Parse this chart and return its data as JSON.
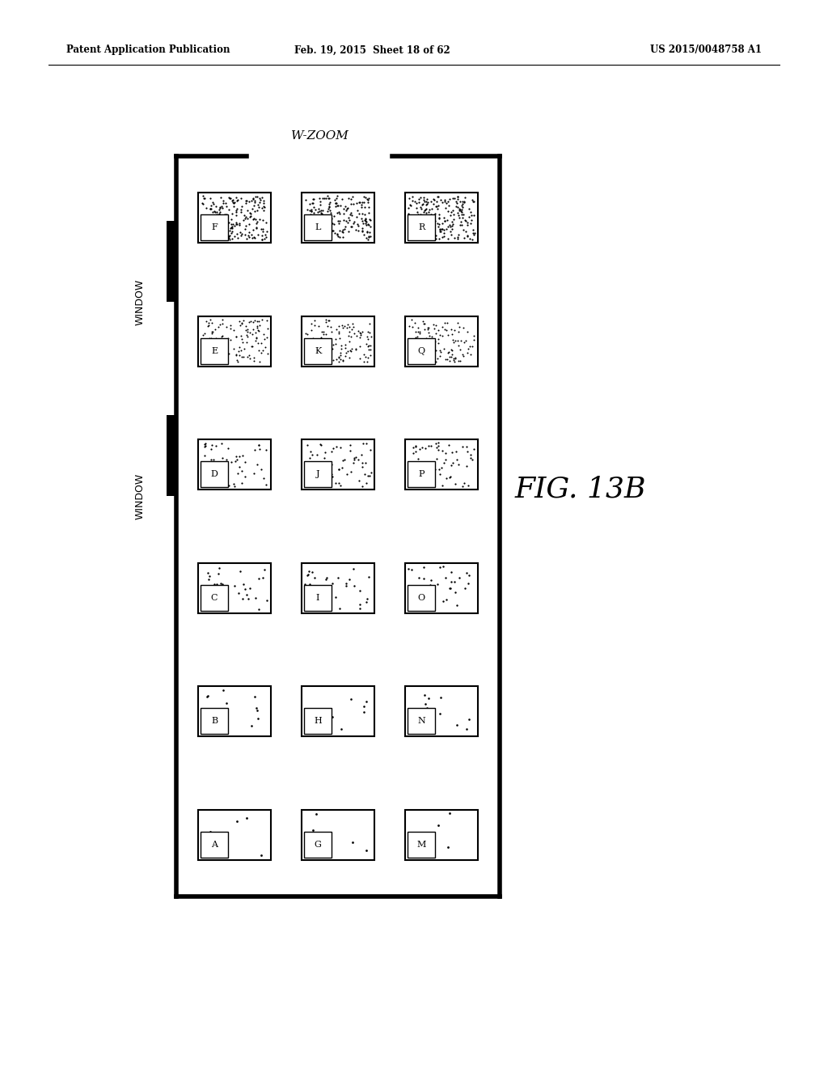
{
  "header_left": "Patent Application Publication",
  "header_mid": "Feb. 19, 2015  Sheet 18 of 62",
  "header_right": "US 2015/0048758 A1",
  "fig_label": "FIG. 13B",
  "top_label": "W-ZOOM",
  "grid_labels": [
    [
      "F",
      "L",
      "R"
    ],
    [
      "E",
      "K",
      "Q"
    ],
    [
      "D",
      "J",
      "P"
    ],
    [
      "C",
      "I",
      "O"
    ],
    [
      "B",
      "H",
      "N"
    ],
    [
      "A",
      "G",
      "M"
    ]
  ],
  "dot_counts": [
    200,
    120,
    60,
    30,
    14,
    4
  ],
  "dot_sizes": [
    2.5,
    2.0,
    2.5,
    3.0,
    3.5,
    4.0
  ],
  "bg_colors": [
    "#ffffff",
    "#ffffff",
    "#ffffff",
    "#ffffff",
    "#ffffff",
    "#ffffff"
  ]
}
